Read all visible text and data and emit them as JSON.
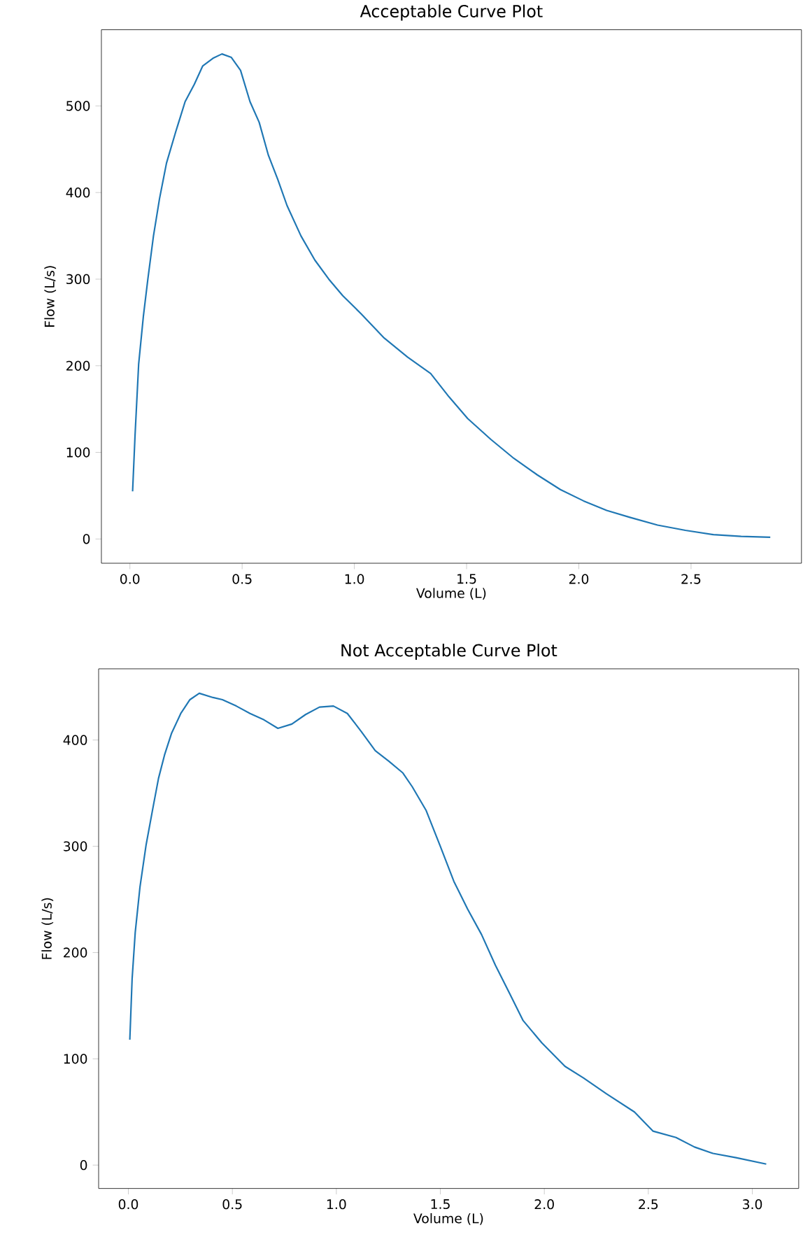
{
  "chart_data": [
    {
      "type": "line",
      "title": "Acceptable Curve Plot",
      "xlabel": "Volume (L)",
      "ylabel": "Flow (L/s)",
      "xlim": [
        -0.127,
        2.992
      ],
      "ylim": [
        -28,
        588
      ],
      "xticks": [
        {
          "value": 0,
          "label": "0.0"
        },
        0.5,
        {
          "value": 1,
          "label": "1.0"
        },
        1.5,
        {
          "value": 2,
          "label": "2.0"
        },
        2.5
      ],
      "yticks": [
        0,
        100,
        200,
        300,
        400,
        500
      ],
      "series": [
        {
          "color": "#1f77b4",
          "x": [
            0.012,
            0.023,
            0.039,
            0.06,
            0.08,
            0.105,
            0.132,
            0.163,
            0.204,
            0.246,
            0.287,
            0.324,
            0.37,
            0.41,
            0.452,
            0.493,
            0.535,
            0.576,
            0.617,
            0.659,
            0.7,
            0.762,
            0.824,
            0.886,
            0.948,
            1.03,
            1.133,
            1.237,
            1.34,
            1.422,
            1.505,
            1.608,
            1.711,
            1.815,
            1.918,
            2.021,
            2.124,
            2.227,
            2.351,
            2.475,
            2.6,
            2.723,
            2.853
          ],
          "values": [
            55,
            120,
            202,
            257,
            300,
            350,
            393,
            434,
            470,
            505,
            525,
            546,
            555,
            560,
            556,
            541,
            505,
            481,
            443,
            415,
            385,
            350,
            322,
            300,
            281,
            260,
            232,
            210,
            191,
            164,
            139,
            115,
            93,
            74,
            57,
            44,
            33,
            25,
            16,
            10,
            5,
            3,
            2
          ]
        }
      ]
    },
    {
      "type": "line",
      "title": "Not Acceptable Curve Plot",
      "xlabel": "Volume (L)",
      "ylabel": "Flow (L/s)",
      "xlim": [
        -0.143,
        3.223
      ],
      "ylim": [
        -22,
        467
      ],
      "xticks": [
        {
          "value": 0,
          "label": "0.0"
        },
        0.5,
        {
          "value": 1,
          "label": "1.0"
        },
        1.5,
        {
          "value": 2,
          "label": "2.0"
        },
        2.5,
        {
          "value": 3,
          "label": "3.0"
        }
      ],
      "yticks": [
        0,
        100,
        200,
        300,
        400
      ],
      "series": [
        {
          "color": "#1f77b4",
          "x": [
            0.007,
            0.018,
            0.033,
            0.056,
            0.085,
            0.118,
            0.145,
            0.174,
            0.207,
            0.252,
            0.296,
            0.341,
            0.407,
            0.452,
            0.519,
            0.585,
            0.652,
            0.719,
            0.786,
            0.852,
            0.919,
            0.986,
            1.053,
            1.12,
            1.187,
            1.253,
            1.32,
            1.365,
            1.431,
            1.498,
            1.565,
            1.631,
            1.698,
            1.765,
            1.832,
            1.898,
            1.988,
            2.099,
            2.188,
            2.299,
            2.433,
            2.522,
            2.633,
            2.722,
            2.811,
            2.922,
            3.067
          ],
          "values": [
            118,
            175,
            219,
            262,
            301,
            336,
            364,
            386,
            406,
            425,
            438,
            444,
            440,
            438,
            432,
            425,
            419,
            411,
            415,
            424,
            431,
            432,
            425,
            408,
            390,
            380,
            369,
            356,
            334,
            301,
            267,
            241,
            217,
            188,
            162,
            136,
            115,
            93,
            82,
            67,
            50,
            32,
            26,
            17,
            11,
            7,
            1
          ]
        }
      ]
    }
  ]
}
